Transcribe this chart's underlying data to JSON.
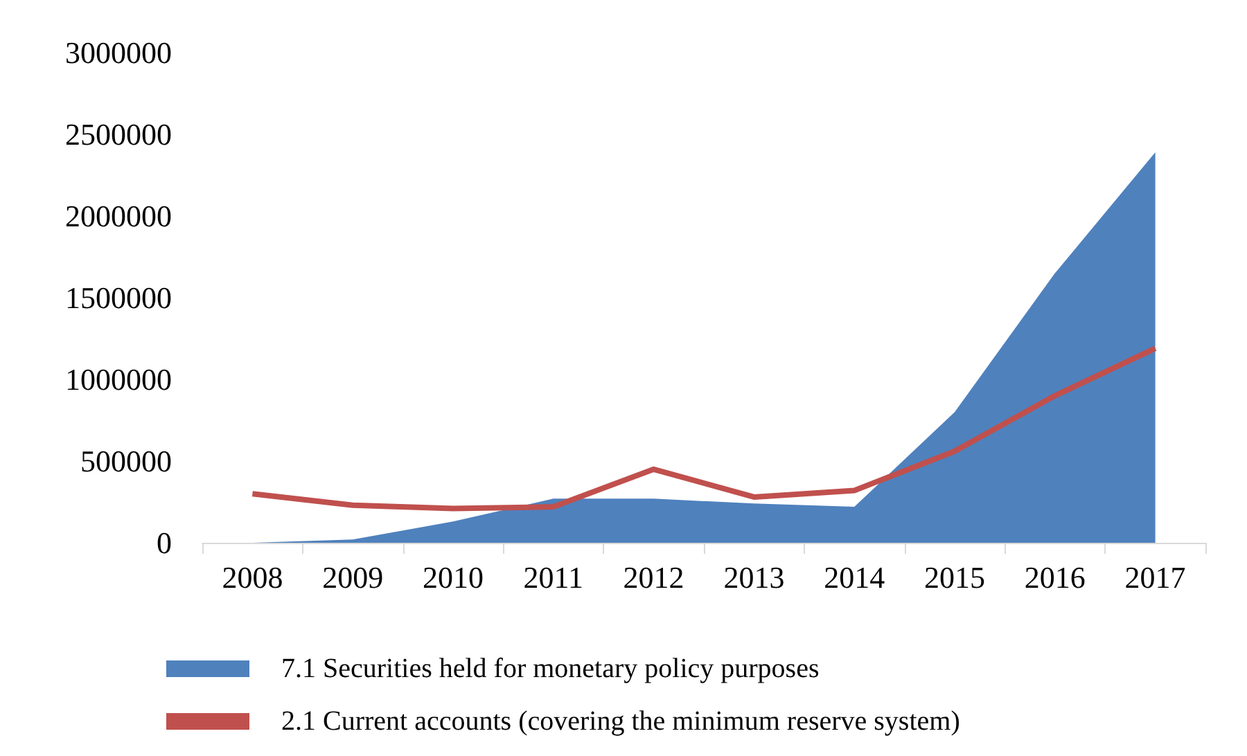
{
  "chart_data": {
    "type": "area",
    "categories": [
      "2008",
      "2009",
      "2010",
      "2011",
      "2012",
      "2013",
      "2014",
      "2015",
      "2016",
      "2017"
    ],
    "series": [
      {
        "name": "7.1 Securities held for monetary policy purposes",
        "color": "#4f81bd",
        "values": [
          0,
          20000,
          130000,
          270000,
          270000,
          240000,
          220000,
          800000,
          1650000,
          2390000
        ]
      },
      {
        "name": "2.1 Current accounts (covering the minimum reserve system)",
        "type": "line",
        "color": "#c0504d",
        "values": [
          300000,
          230000,
          210000,
          220000,
          450000,
          280000,
          320000,
          560000,
          900000,
          1190000
        ]
      }
    ],
    "ylim": [
      0,
      3000000
    ],
    "yticks": [
      0,
      500000,
      1000000,
      1500000,
      2000000,
      2500000,
      3000000
    ],
    "grid": false,
    "legend": "bottom",
    "marker": "none"
  }
}
